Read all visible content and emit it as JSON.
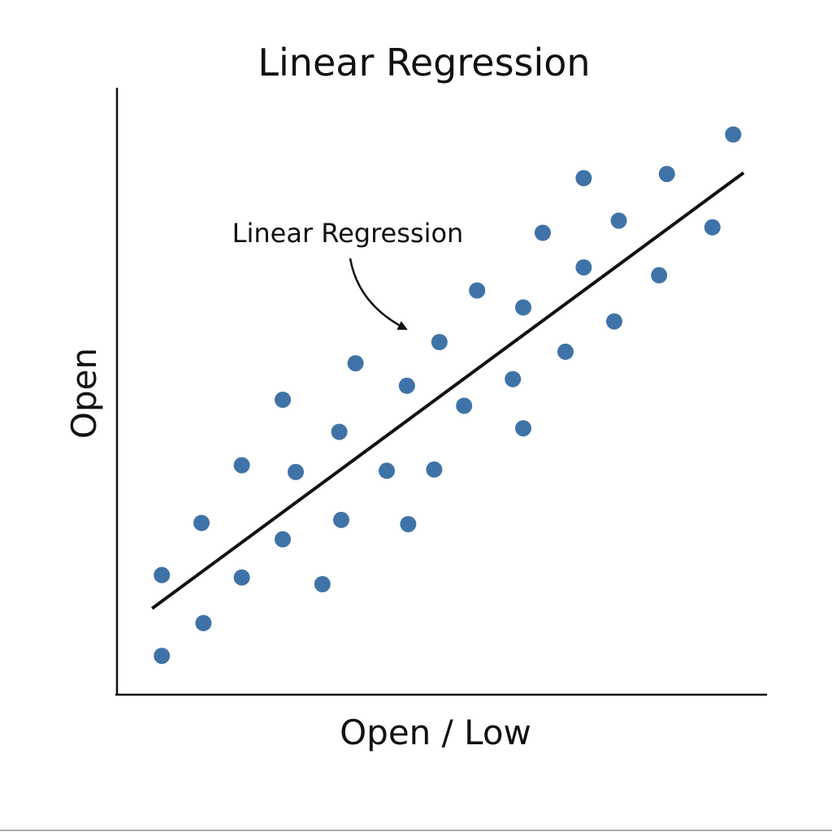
{
  "chart_data": {
    "type": "scatter",
    "title": "Linear Regression",
    "xlabel": "Open / Low",
    "ylabel": "Open",
    "xlim": [
      0,
      100
    ],
    "ylim": [
      0,
      100
    ],
    "grid": false,
    "legend": "none",
    "point_color": "#3f73a8",
    "line_color": "#111111",
    "points": [
      {
        "x": 6.9,
        "y": 6.4
      },
      {
        "x": 6.9,
        "y": 19.7
      },
      {
        "x": 13.3,
        "y": 11.8
      },
      {
        "x": 13.0,
        "y": 28.3
      },
      {
        "x": 19.2,
        "y": 19.3
      },
      {
        "x": 19.2,
        "y": 37.8
      },
      {
        "x": 25.5,
        "y": 25.6
      },
      {
        "x": 25.5,
        "y": 48.6
      },
      {
        "x": 27.5,
        "y": 36.7
      },
      {
        "x": 31.6,
        "y": 18.2
      },
      {
        "x": 34.5,
        "y": 28.8
      },
      {
        "x": 34.2,
        "y": 43.3
      },
      {
        "x": 36.7,
        "y": 54.6
      },
      {
        "x": 41.5,
        "y": 36.9
      },
      {
        "x": 44.6,
        "y": 50.9
      },
      {
        "x": 44.8,
        "y": 28.1
      },
      {
        "x": 48.8,
        "y": 37.1
      },
      {
        "x": 49.6,
        "y": 58.1
      },
      {
        "x": 53.4,
        "y": 47.6
      },
      {
        "x": 55.4,
        "y": 66.6
      },
      {
        "x": 60.9,
        "y": 52.0
      },
      {
        "x": 62.5,
        "y": 43.9
      },
      {
        "x": 62.5,
        "y": 63.8
      },
      {
        "x": 65.5,
        "y": 76.1
      },
      {
        "x": 69.0,
        "y": 56.5
      },
      {
        "x": 71.8,
        "y": 70.4
      },
      {
        "x": 71.8,
        "y": 85.1
      },
      {
        "x": 76.5,
        "y": 61.5
      },
      {
        "x": 77.2,
        "y": 78.1
      },
      {
        "x": 83.4,
        "y": 69.1
      },
      {
        "x": 84.6,
        "y": 85.8
      },
      {
        "x": 91.6,
        "y": 77.0
      },
      {
        "x": 94.8,
        "y": 92.3
      }
    ],
    "regression_line": {
      "x": [
        5.4,
        96.4
      ],
      "y": [
        14.2,
        86.0
      ]
    },
    "annotation": {
      "text": "Linear Regression"
    }
  }
}
